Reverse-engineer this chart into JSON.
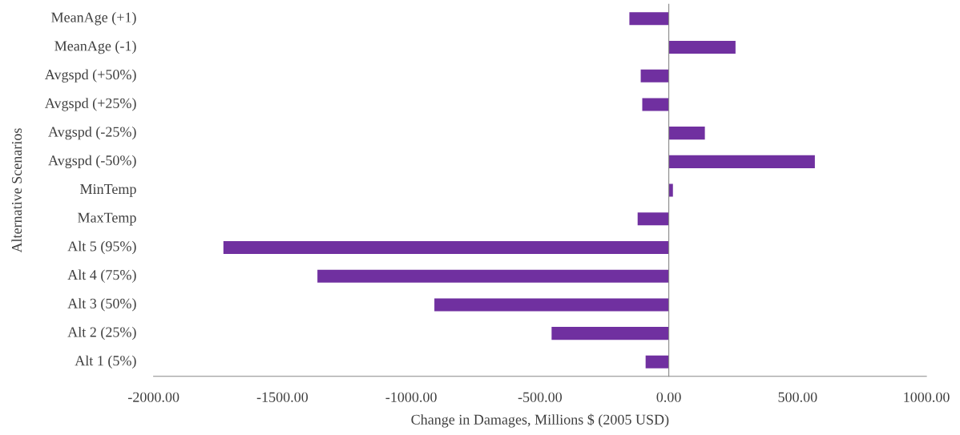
{
  "chart_data": {
    "type": "bar",
    "orientation": "horizontal",
    "xlabel": "Change in Damages, Millions $ (2005 USD)",
    "ylabel": "Alternative Scenarios",
    "categories": [
      "MeanAge (+1)",
      "MeanAge (-1)",
      "Avgspd (+50%)",
      "Avgspd (+25%)",
      "Avgspd (-25%)",
      "Avgspd (-50%)",
      "MinTemp",
      "MaxTemp",
      "Alt 5 (95%)",
      "Alt 4 (75%)",
      "Alt 3 (50%)",
      "Alt 2 (25%)",
      "Alt 1 (5%)"
    ],
    "values": [
      -153,
      259,
      -109,
      -103,
      140,
      567,
      16,
      -121,
      -1729,
      -1364,
      -910,
      -455,
      -90
    ],
    "color": "#7030a0",
    "xlim": [
      -2000,
      1000
    ],
    "xticks": [
      {
        "value": -2000,
        "label": "-2000.00"
      },
      {
        "value": -1500,
        "label": "-1500.00"
      },
      {
        "value": -1000,
        "label": "-1000.00"
      },
      {
        "value": -500,
        "label": "-500.00"
      },
      {
        "value": 0,
        "label": "0.00"
      },
      {
        "value": 500,
        "label": "500.00"
      },
      {
        "value": 1000,
        "label": "1000.00"
      }
    ],
    "legend": false
  }
}
